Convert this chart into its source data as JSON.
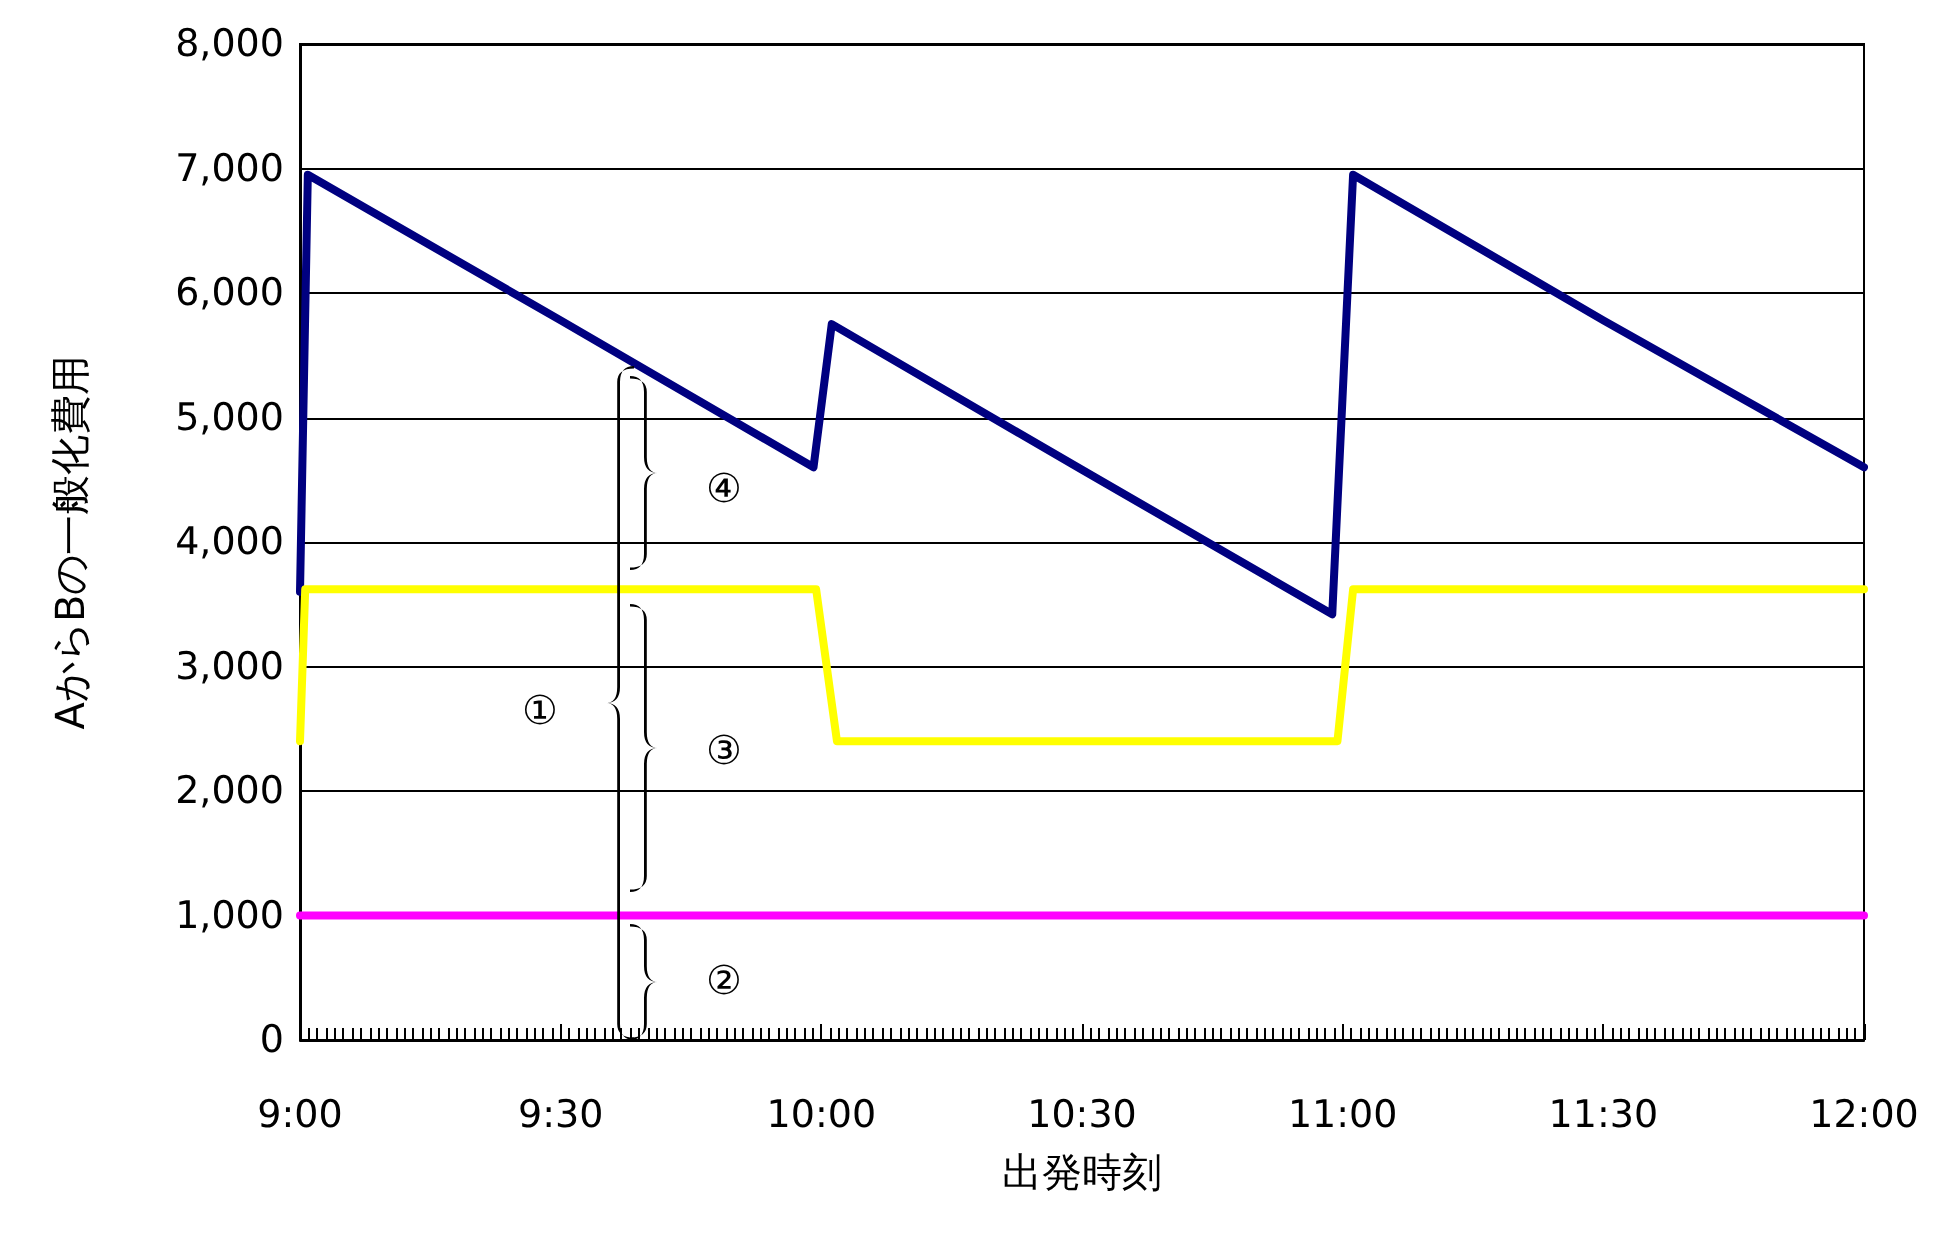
{
  "chart_data": {
    "type": "line",
    "xlabel": "出発時刻",
    "ylabel": "AからBの一般化費用",
    "xlim": [
      9,
      12
    ],
    "xticks": [
      {
        "value": 9,
        "label": "9:00"
      },
      {
        "value": 9.5,
        "label": "9:30"
      },
      {
        "value": 10,
        "label": "10:00"
      },
      {
        "value": 10.5,
        "label": "10:30"
      },
      {
        "value": 11,
        "label": "11:00"
      },
      {
        "value": 11.5,
        "label": "11:30"
      },
      {
        "value": 12,
        "label": "12:00"
      }
    ],
    "ylim": [
      0,
      8000
    ],
    "yticks": [
      0,
      {
        "value": 1000,
        "label": "1,000"
      },
      {
        "value": 2000,
        "label": "2,000"
      },
      {
        "value": 3000,
        "label": "3,000"
      },
      {
        "value": 4000,
        "label": "4,000"
      },
      {
        "value": 5000,
        "label": "5,000"
      },
      {
        "value": 6000,
        "label": "6,000"
      },
      {
        "value": 7000,
        "label": "7,000"
      },
      {
        "value": 8000,
        "label": "8,000"
      }
    ],
    "grid": "y",
    "marker": "none",
    "line_style": "solid",
    "series": [
      {
        "color": "#000080",
        "x": [
          9,
          9.015,
          9.5,
          9.985,
          10.02,
          10.5,
          10.98,
          11.02,
          11.5,
          12
        ],
        "values": [
          3600,
          6950,
          5780,
          4600,
          5750,
          4580,
          3420,
          6950,
          5780,
          4600
        ]
      },
      {
        "color": "#ffff00",
        "x": [
          9,
          9.01,
          9.99,
          10.03,
          10.99,
          11.02,
          12
        ],
        "values": [
          2400,
          3620,
          3620,
          2400,
          2400,
          3620,
          3620
        ]
      },
      {
        "color": "#ff00ff",
        "x": [
          9,
          12
        ],
        "values": [
          1000,
          1000
        ]
      }
    ],
    "annotations": [
      "①",
      "②",
      "③",
      "④"
    ]
  }
}
